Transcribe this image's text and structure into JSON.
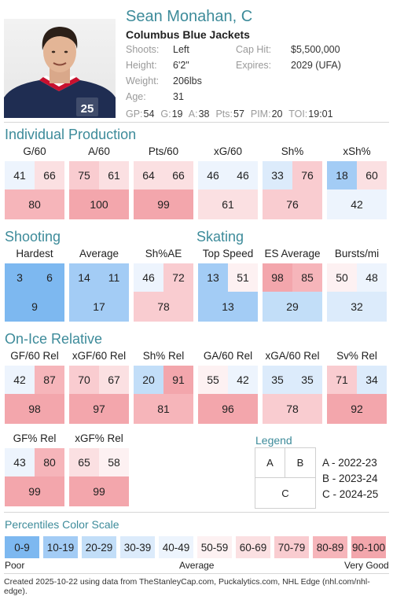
{
  "player": {
    "name": "Sean Monahan, C",
    "team": "Columbus Blue Jackets",
    "jersey_number": "25"
  },
  "info": {
    "shoots_label": "Shoots:",
    "shoots": "Left",
    "height_label": "Height:",
    "height": "6'2\"",
    "weight_label": "Weight:",
    "weight": "206lbs",
    "age_label": "Age:",
    "age": "31",
    "caphit_label": "Cap Hit:",
    "caphit": "$5,500,000",
    "expires_label": "Expires:",
    "expires": "2029 (UFA)"
  },
  "statline": {
    "gp_label": "GP:",
    "gp": "54",
    "g_label": "G:",
    "g": "19",
    "a_label": "A:",
    "a": "38",
    "pts_label": "Pts:",
    "pts": "57",
    "pim_label": "PIM:",
    "pim": "20",
    "toi_label": "TOI:",
    "toi": "19:01"
  },
  "sections": {
    "individual": "Individual Production",
    "shooting": "Shooting",
    "skating": "Skating",
    "onice": "On-Ice Relative",
    "scale": "Percentiles Color Scale"
  },
  "metrics": {
    "g60": {
      "title": "G/60",
      "a": "41",
      "b": "66",
      "c": "80"
    },
    "a60": {
      "title": "A/60",
      "a": "75",
      "b": "61",
      "c": "100"
    },
    "pts60": {
      "title": "Pts/60",
      "a": "64",
      "b": "66",
      "c": "99"
    },
    "xg60": {
      "title": "xG/60",
      "a": "46",
      "b": "46",
      "c": "61"
    },
    "sh": {
      "title": "Sh%",
      "a": "33",
      "b": "76",
      "c": "76"
    },
    "xsh": {
      "title": "xSh%",
      "a": "18",
      "b": "60",
      "c": "42"
    },
    "hardest": {
      "title": "Hardest",
      "a": "3",
      "b": "6",
      "c": "9"
    },
    "average": {
      "title": "Average",
      "a": "14",
      "b": "11",
      "c": "17"
    },
    "shae": {
      "title": "Sh%AE",
      "a": "46",
      "b": "72",
      "c": "78"
    },
    "topspeed": {
      "title": "Top Speed",
      "a": "13",
      "b": "51",
      "c": "13"
    },
    "esavg": {
      "title": "ES Average",
      "a": "98",
      "b": "85",
      "c": "29"
    },
    "bursts": {
      "title": "Bursts/mi",
      "a": "50",
      "b": "48",
      "c": "32"
    },
    "gf60rel": {
      "title": "GF/60 Rel",
      "a": "42",
      "b": "87",
      "c": "98"
    },
    "xgf60rel": {
      "title": "xGF/60 Rel",
      "a": "70",
      "b": "67",
      "c": "97"
    },
    "shrel": {
      "title": "Sh% Rel",
      "a": "20",
      "b": "91",
      "c": "81"
    },
    "ga60rel": {
      "title": "GA/60 Rel",
      "a": "55",
      "b": "42",
      "c": "96"
    },
    "xga60rel": {
      "title": "xGA/60 Rel",
      "a": "35",
      "b": "35",
      "c": "78"
    },
    "svrel": {
      "title": "Sv% Rel",
      "a": "71",
      "b": "34",
      "c": "92"
    },
    "gfrel": {
      "title": "GF% Rel",
      "a": "43",
      "b": "80",
      "c": "99"
    },
    "xgfrel": {
      "title": "xGF% Rel",
      "a": "65",
      "b": "58",
      "c": "99"
    }
  },
  "legend": {
    "title": "Legend",
    "a": "A",
    "b": "B",
    "c": "C",
    "a_desc": "A - 2022-23",
    "b_desc": "B - 2023-24",
    "c_desc": "C - 2024-25"
  },
  "scale": {
    "bins": [
      "0-9",
      "10-19",
      "20-29",
      "30-39",
      "40-49",
      "50-59",
      "60-69",
      "70-79",
      "80-89",
      "90-100"
    ],
    "colors": [
      "#7db8f0",
      "#a3ccf5",
      "#c2def8",
      "#dcebfb",
      "#edf4fd",
      "#fdf1f2",
      "#fbe0e2",
      "#f9ccd0",
      "#f6b5ba",
      "#f3a6ac"
    ],
    "poor": "Poor",
    "average": "Average",
    "very_good": "Very Good"
  },
  "footer": "Created 2025-10-22 using data from TheStanleyCap.com, Puckalytics.com, NHL Edge (nhl.com/nhl-edge)."
}
